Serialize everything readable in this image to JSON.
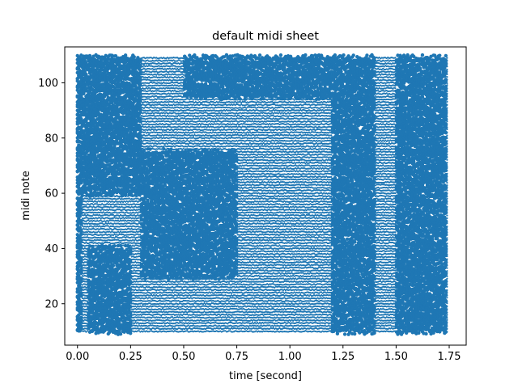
{
  "chart_data": {
    "type": "scatter",
    "title": "default midi sheet",
    "xlabel": "time [second]",
    "ylabel": "midi note",
    "xlim": [
      -0.06,
      1.83
    ],
    "ylim": [
      5,
      113
    ],
    "xticks": [
      0.0,
      0.25,
      0.5,
      0.75,
      1.0,
      1.25,
      1.5,
      1.75
    ],
    "xtick_labels": [
      "0.00",
      "0.25",
      "0.50",
      "0.75",
      "1.00",
      "1.25",
      "1.50",
      "1.75"
    ],
    "yticks": [
      20,
      40,
      60,
      80,
      100
    ],
    "ytick_labels": [
      "20",
      "40",
      "60",
      "80",
      "100"
    ],
    "grid": false,
    "legend": "none",
    "marker_color": "#1f77b4",
    "series": [
      {
        "x_start": 0.0,
        "x_end": 1.74,
        "x_step": 0.0058,
        "note_min": 10,
        "note_max": 109,
        "note_step": 1,
        "description_of_density": "dense grid of note events"
      }
    ],
    "dense_regions": [
      {
        "x": [
          0.0,
          0.02
        ],
        "y": [
          10,
          110
        ]
      },
      {
        "x": [
          0.02,
          0.3
        ],
        "y": [
          60,
          110
        ]
      },
      {
        "x": [
          0.05,
          0.25
        ],
        "y": [
          10,
          40
        ]
      },
      {
        "x": [
          0.3,
          0.75
        ],
        "y": [
          30,
          75
        ]
      },
      {
        "x": [
          0.5,
          1.25
        ],
        "y": [
          95,
          110
        ]
      },
      {
        "x": [
          1.2,
          1.4
        ],
        "y": [
          10,
          110
        ]
      },
      {
        "x": [
          1.5,
          1.74
        ],
        "y": [
          10,
          110
        ]
      }
    ]
  }
}
